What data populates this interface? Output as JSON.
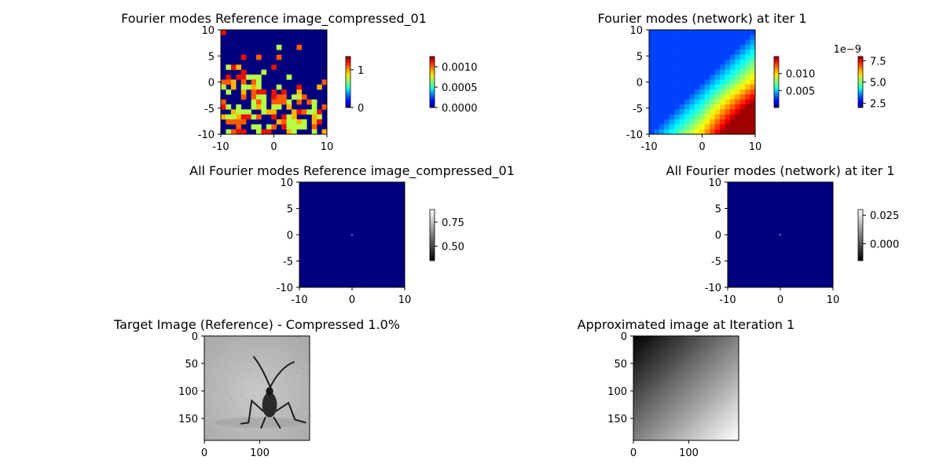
{
  "figure": {
    "colormaps": {
      "jet": "jet",
      "gray": "gray"
    }
  },
  "chart_data": [
    {
      "type": "heatmap",
      "title": "Fourier modes Reference image_compressed_01",
      "colormap": "jet",
      "xlim": [
        -10,
        10
      ],
      "ylim": [
        -10,
        10
      ],
      "xticks": [
        "-10",
        "0",
        "10"
      ],
      "yticks": [
        "10",
        "5",
        "0",
        "-5",
        "-10"
      ],
      "pattern": "sparse_bands",
      "colorbars": [
        {
          "colormap": "jet",
          "range": [
            0,
            1.35
          ],
          "ticks": [
            "0",
            "1"
          ],
          "offset": ""
        },
        {
          "colormap": "jet",
          "range": [
            0,
            0.00125
          ],
          "ticks": [
            "0.0000",
            "0.0005",
            "0.0010"
          ],
          "offset": ""
        }
      ]
    },
    {
      "type": "heatmap",
      "title": "Fourier modes (network) at iter 1",
      "colormap": "jet",
      "xlim": [
        -10,
        10
      ],
      "ylim": [
        -10,
        10
      ],
      "xticks": [
        "-10",
        "0",
        "10"
      ],
      "yticks": [
        "10",
        "5",
        "0",
        "-5",
        "-10"
      ],
      "pattern": "diagonal_gradient",
      "colorbars": [
        {
          "colormap": "jet",
          "range": [
            0.0,
            0.015
          ],
          "ticks": [
            "0.005",
            "0.010"
          ],
          "offset": ""
        },
        {
          "colormap": "jet",
          "range": [
            2.0,
            8.0
          ],
          "ticks": [
            "2.5",
            "5.0",
            "7.5"
          ],
          "offset": "1e−9"
        }
      ]
    },
    {
      "type": "heatmap",
      "title": "All Fourier modes Reference image_compressed_01",
      "colormap": "jet",
      "xlim": [
        -10,
        10
      ],
      "ylim": [
        -10,
        10
      ],
      "xticks": [
        "-10",
        "0",
        "10"
      ],
      "yticks": [
        "10",
        "5",
        "0",
        "-5",
        "-10"
      ],
      "pattern": "center_spot",
      "colorbars": [
        {
          "colormap": "gray",
          "range": [
            0.35,
            0.88
          ],
          "ticks": [
            "0.50",
            "0.75"
          ],
          "offset": ""
        }
      ]
    },
    {
      "type": "heatmap",
      "title": "All Fourier modes (network) at iter 1",
      "colormap": "jet",
      "xlim": [
        -10,
        10
      ],
      "ylim": [
        -10,
        10
      ],
      "xticks": [
        "-10",
        "0",
        "10"
      ],
      "yticks": [
        "10",
        "5",
        "0",
        "-5",
        "-10"
      ],
      "pattern": "center_spot",
      "colorbars": [
        {
          "colormap": "gray",
          "range": [
            -0.015,
            0.03
          ],
          "ticks": [
            "0.000",
            "0.025"
          ],
          "offset": ""
        }
      ]
    },
    {
      "type": "heatmap",
      "title": "Target Image (Reference) - Compressed 1.0%",
      "colormap": "gray",
      "xlim": [
        0,
        190
      ],
      "ylim": [
        190,
        0
      ],
      "xticks": [
        "0",
        "100"
      ],
      "yticks": [
        "0",
        "50",
        "100",
        "150"
      ],
      "pattern": "insect_photo",
      "colorbars": []
    },
    {
      "type": "heatmap",
      "title": "Approximated image at Iteration 1",
      "colormap": "gray",
      "xlim": [
        0,
        190
      ],
      "ylim": [
        190,
        0
      ],
      "xticks": [
        "0",
        "100"
      ],
      "yticks": [
        "0",
        "50",
        "100",
        "150"
      ],
      "pattern": "gray_gradient",
      "colorbars": []
    }
  ]
}
